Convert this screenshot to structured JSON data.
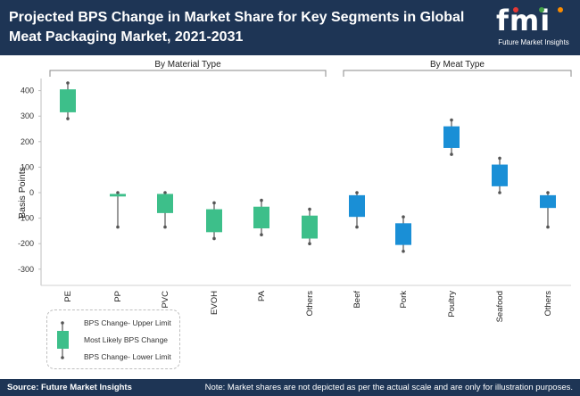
{
  "header": {
    "title_line1": "Projected BPS Change in Market Share for Key Segments in Global",
    "title_line2": "Meat Packaging Market, 2021-2031",
    "logo_text": "fmi",
    "logo_subtitle": "Future Market Insights"
  },
  "footer": {
    "source": "Source: Future Market Insights",
    "note": "Note: Market shares are not depicted as per the actual scale and are only for illustration purposes."
  },
  "legend": {
    "upper": "BPS Change- Upper Limit",
    "likely": "Most Likely BPS Change",
    "lower": "BPS Change- Lower Limit"
  },
  "colors": {
    "header_bg": "#1e3555",
    "material_box": "#3dbf8a",
    "meat_box": "#1a8fd6",
    "whisker": "#555555"
  },
  "chart_data": {
    "type": "boxplot",
    "ylabel": "Basis Points",
    "ylim": [
      -350,
      430
    ],
    "yticks": [
      400,
      300,
      200,
      100,
      0,
      -100,
      -200,
      -300
    ],
    "groups": [
      {
        "name": "By Material Type",
        "color": "#3dbf8a"
      },
      {
        "name": "By Meat Type",
        "color": "#1a8fd6"
      }
    ],
    "categories": [
      {
        "label": "PE",
        "group": 0,
        "low": 290,
        "q1": 315,
        "q3": 405,
        "high": 430
      },
      {
        "label": "PP",
        "group": 0,
        "low": -135,
        "q1": -15,
        "q3": -5,
        "high": 0
      },
      {
        "label": "PVC",
        "group": 0,
        "low": -135,
        "q1": -80,
        "q3": -5,
        "high": 0
      },
      {
        "label": "EVOH",
        "group": 0,
        "low": -180,
        "q1": -155,
        "q3": -65,
        "high": -40
      },
      {
        "label": "PA",
        "group": 0,
        "low": -165,
        "q1": -140,
        "q3": -55,
        "high": -30
      },
      {
        "label": "Others",
        "group": 0,
        "low": -200,
        "q1": -180,
        "q3": -90,
        "high": -65
      },
      {
        "label": "Beef",
        "group": 1,
        "low": -135,
        "q1": -95,
        "q3": -10,
        "high": 0
      },
      {
        "label": "Pork",
        "group": 1,
        "low": -230,
        "q1": -205,
        "q3": -120,
        "high": -95
      },
      {
        "label": "Poultry",
        "group": 1,
        "low": 150,
        "q1": 175,
        "q3": 260,
        "high": 285
      },
      {
        "label": "Seafood",
        "group": 1,
        "low": 0,
        "q1": 25,
        "q3": 110,
        "high": 135
      },
      {
        "label": "Others",
        "group": 1,
        "low": -135,
        "q1": -60,
        "q3": -10,
        "high": 0
      }
    ]
  }
}
